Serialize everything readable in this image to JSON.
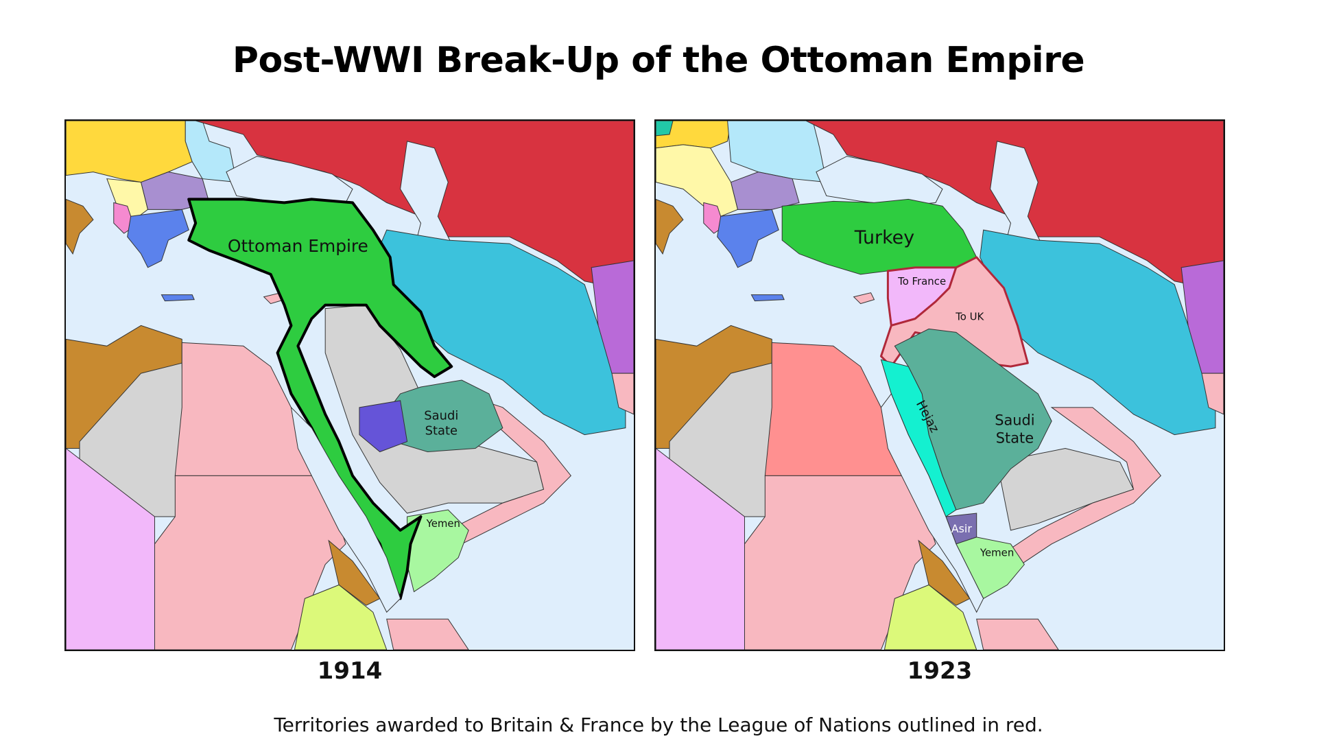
{
  "title": "Post-WWI Break-Up of the Ottoman Empire",
  "caption": "Territories awarded to Britain & France by the League of Nations outlined in red.",
  "colors": {
    "sea": "#dfeefc",
    "ottoman_green": "#2ecc40",
    "mandate_outline": "#b0283a",
    "russia_red": "#d83340",
    "persia_blue": "#3cc2dc",
    "saudi_teal": "#5bb09a",
    "hejaz_cyan": "#14f0d0",
    "yemen_green": "#a8f7a0",
    "pink": "#f8b8c0",
    "grey": "#d4d4d4"
  },
  "maps": [
    {
      "year": "1914",
      "labels": {
        "ottoman": "Ottoman Empire",
        "saudi_line1": "Saudi",
        "saudi_line2": "State",
        "yemen": "Yemen"
      }
    },
    {
      "year": "1923",
      "labels": {
        "turkey": "Turkey",
        "to_france": "To France",
        "to_uk": "To UK",
        "hejaz": "Hejaz",
        "saudi_line1": "Saudi",
        "saudi_line2": "State",
        "asir": "Asir",
        "yemen": "Yemen"
      }
    }
  ]
}
